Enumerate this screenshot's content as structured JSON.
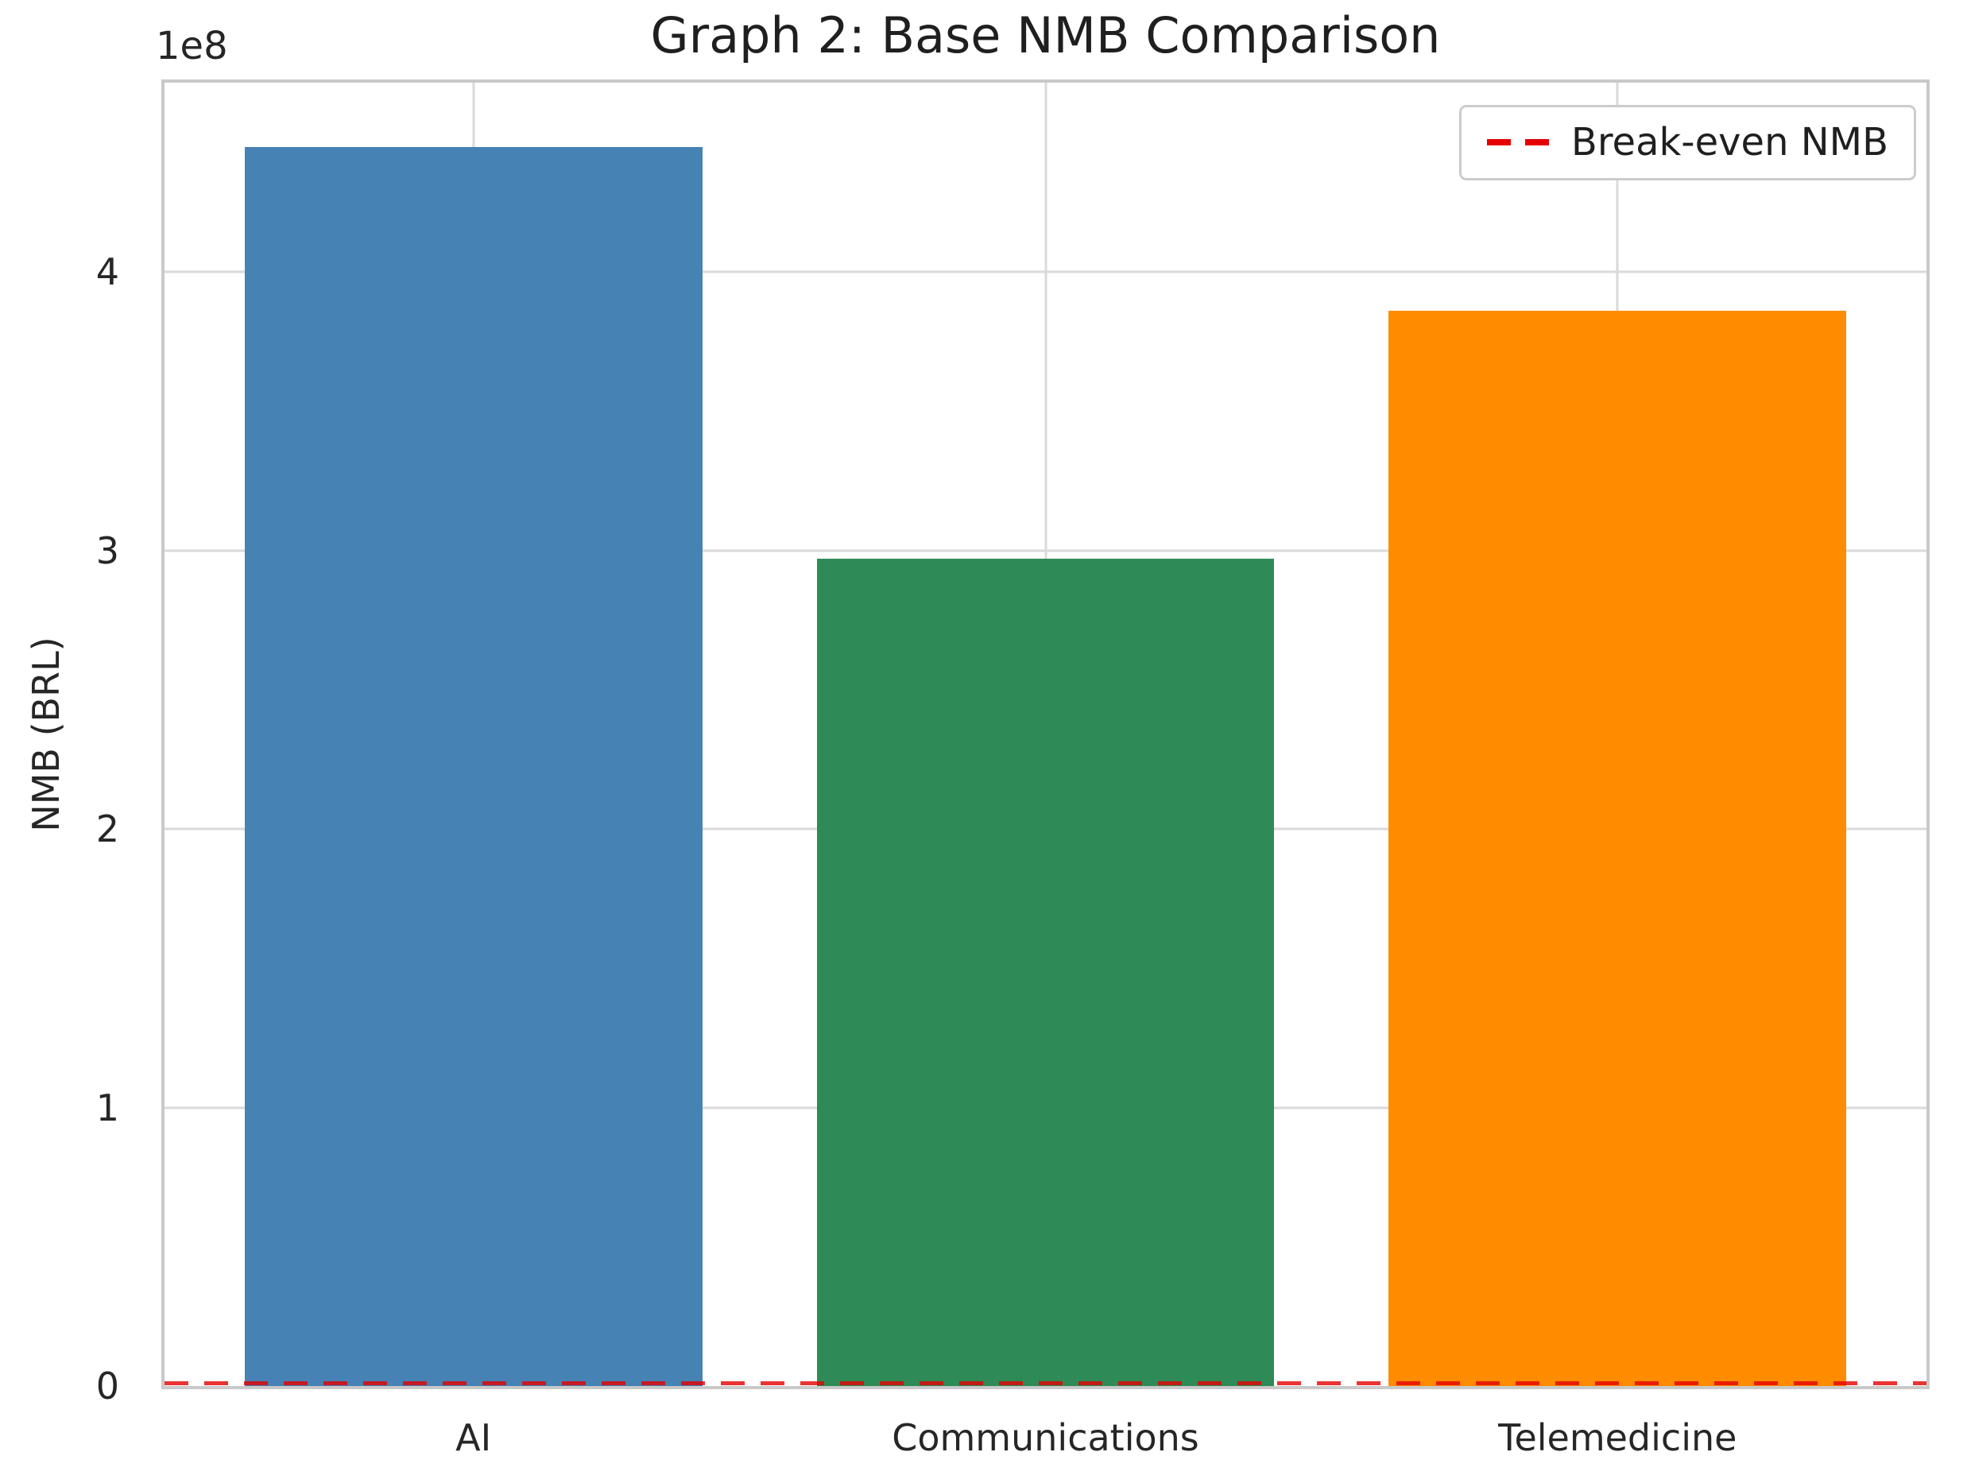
{
  "title": "Graph 2: Base NMB Comparison",
  "axes": {
    "y_label": "NMB (BRL)",
    "offset_text": "1e8",
    "y_tick_labels": [
      "0",
      "1",
      "2",
      "3",
      "4"
    ],
    "x_tick_labels": [
      "AI",
      "Communications",
      "Telemedicine"
    ]
  },
  "legend": {
    "label": "Break-even NMB",
    "line_color": "#e50000",
    "line_style": "dashed",
    "position": "upper right"
  },
  "colors": {
    "grid": "#dadada",
    "spine": "#c9c9c9",
    "text": "#262626",
    "background": "#ffffff"
  },
  "chart_data": {
    "type": "bar",
    "title": "Graph 2: Base NMB Comparison",
    "categories": [
      "AI",
      "Communications",
      "Telemedicine"
    ],
    "values": [
      445000000,
      297000000,
      386000000
    ],
    "bar_colors": [
      "#4682B4",
      "#2E8B57",
      "#FF8C00"
    ],
    "xlabel": "",
    "ylabel": "NMB (BRL)",
    "ylim": [
      0,
      468000000
    ],
    "xlim": [
      -0.54,
      2.54
    ],
    "bar_width": 0.8,
    "y_ticks": [
      {
        "label": "0",
        "value": 0
      },
      {
        "label": "1",
        "value": 100000000
      },
      {
        "label": "2",
        "value": 200000000
      },
      {
        "label": "3",
        "value": 300000000
      },
      {
        "label": "4",
        "value": 400000000
      }
    ],
    "y_axis_offset_text": "1e8",
    "grid": true,
    "legend_position": "upper right",
    "break_even_line": {
      "label": "Break-even NMB",
      "y": 0,
      "color": "#e50000",
      "style": "dashed"
    }
  }
}
